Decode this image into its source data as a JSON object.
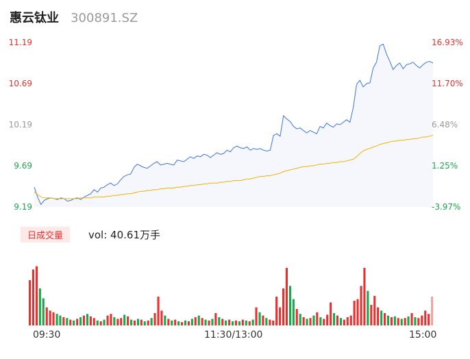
{
  "header": {
    "name": "惠云钛业",
    "code": "300891.SZ"
  },
  "volume": {
    "label": "日成交量",
    "text": "vol: 40.61万手"
  },
  "time_labels": [
    "09:30",
    "11:30/13:00",
    "15:00"
  ],
  "colors": {
    "price": "#3b73e3",
    "avg": "#f5b000",
    "up": "#e8312e",
    "down": "#1aa64b",
    "flat": "#999999",
    "fill": "#f5f7fc",
    "latest_bar": "#f2a0a0"
  },
  "chart_data": {
    "type": "line",
    "ylim": [
      9.19,
      11.19
    ],
    "y_ticks": [
      {
        "price": "11.19",
        "pct": "16.93%",
        "dir": "up"
      },
      {
        "price": "10.69",
        "pct": "11.70%",
        "dir": "up"
      },
      {
        "price": "10.19",
        "pct": "6.48%",
        "dir": "flat"
      },
      {
        "price": "9.69",
        "pct": "1.25%",
        "dir": "down"
      },
      {
        "price": "9.19",
        "pct": "-3.97%",
        "dir": "down"
      }
    ],
    "series": [
      {
        "key": "price",
        "values": [
          9.43,
          9.31,
          9.22,
          9.27,
          9.29,
          9.3,
          9.29,
          9.28,
          9.3,
          9.29,
          9.26,
          9.27,
          9.29,
          9.3,
          9.28,
          9.31,
          9.33,
          9.35,
          9.4,
          9.37,
          9.42,
          9.43,
          9.46,
          9.48,
          9.45,
          9.47,
          9.52,
          9.56,
          9.58,
          9.59,
          9.67,
          9.71,
          9.69,
          9.67,
          9.66,
          9.69,
          9.72,
          9.74,
          9.7,
          9.71,
          9.72,
          9.71,
          9.7,
          9.76,
          9.75,
          9.74,
          9.77,
          9.8,
          9.78,
          9.81,
          9.8,
          9.83,
          9.82,
          9.79,
          9.82,
          9.85,
          9.83,
          9.84,
          9.88,
          9.86,
          9.91,
          9.93,
          9.91,
          9.9,
          9.92,
          9.88,
          9.9,
          9.89,
          9.9,
          9.88,
          9.87,
          9.88,
          10.06,
          10.08,
          10.05,
          10.3,
          10.26,
          10.23,
          10.17,
          10.14,
          10.15,
          10.12,
          10.09,
          10.12,
          10.1,
          10.08,
          10.17,
          10.15,
          10.21,
          10.18,
          10.16,
          10.2,
          10.19,
          10.22,
          10.25,
          10.22,
          10.4,
          10.68,
          10.73,
          10.65,
          10.69,
          10.7,
          10.88,
          10.95,
          11.15,
          11.17,
          11.05,
          10.96,
          10.86,
          10.91,
          10.94,
          10.87,
          10.92,
          10.93,
          10.95,
          10.91,
          10.88,
          10.92,
          10.95,
          10.96,
          10.94
        ],
        "avg": [
          9.37,
          9.34,
          9.31,
          9.3,
          9.3,
          9.3,
          9.29,
          9.29,
          9.29,
          9.29,
          9.29,
          9.29,
          9.29,
          9.29,
          9.3,
          9.3,
          9.3,
          9.3,
          9.31,
          9.31,
          9.31,
          9.31,
          9.32,
          9.32,
          9.33,
          9.33,
          9.34,
          9.34,
          9.35,
          9.35,
          9.36,
          9.37,
          9.38,
          9.38,
          9.39,
          9.39,
          9.4,
          9.4,
          9.41,
          9.41,
          9.42,
          9.42,
          9.42,
          9.43,
          9.43,
          9.44,
          9.44,
          9.45,
          9.45,
          9.46,
          9.46,
          9.47,
          9.47,
          9.48,
          9.48,
          9.48,
          9.49,
          9.49,
          9.5,
          9.5,
          9.51,
          9.51,
          9.51,
          9.52,
          9.53,
          9.53,
          9.54,
          9.55,
          9.56,
          9.56,
          9.57,
          9.57,
          9.58,
          9.59,
          9.6,
          9.62,
          9.63,
          9.64,
          9.65,
          9.66,
          9.67,
          9.68,
          9.68,
          9.69,
          9.69,
          9.7,
          9.71,
          9.71,
          9.72,
          9.72,
          9.73,
          9.73,
          9.74,
          9.74,
          9.75,
          9.76,
          9.77,
          9.8,
          9.84,
          9.87,
          9.89,
          9.9,
          9.92,
          9.93,
          9.95,
          9.96,
          9.97,
          9.98,
          9.99,
          9.99,
          10.0,
          10.0,
          10.01,
          10.01,
          10.02,
          10.02,
          10.03,
          10.04,
          10.04,
          10.05,
          10.06
        ]
      }
    ]
  },
  "volume_data": {
    "values": [
      0.55,
      0.68,
      0.72,
      0.45,
      0.33,
      0.22,
      0.18,
      0.16,
      0.14,
      0.12,
      0.1,
      0.09,
      0.07,
      0.06,
      0.08,
      0.1,
      0.12,
      0.14,
      0.11,
      0.09,
      0.06,
      0.05,
      0.07,
      0.12,
      0.14,
      0.1,
      0.08,
      0.09,
      0.13,
      0.11,
      0.07,
      0.06,
      0.08,
      0.07,
      0.05,
      0.06,
      0.09,
      0.15,
      0.35,
      0.18,
      0.12,
      0.08,
      0.06,
      0.07,
      0.05,
      0.04,
      0.06,
      0.05,
      0.08,
      0.1,
      0.12,
      0.09,
      0.07,
      0.06,
      0.08,
      0.15,
      0.1,
      0.08,
      0.06,
      0.07,
      0.05,
      0.06,
      0.05,
      0.07,
      0.06,
      0.05,
      0.07,
      0.22,
      0.16,
      0.12,
      0.09,
      0.07,
      0.06,
      0.35,
      0.22,
      0.45,
      0.7,
      0.48,
      0.32,
      0.2,
      0.14,
      0.1,
      0.08,
      0.09,
      0.12,
      0.16,
      0.1,
      0.08,
      0.13,
      0.28,
      0.15,
      0.12,
      0.09,
      0.07,
      0.1,
      0.12,
      0.3,
      0.32,
      0.48,
      0.7,
      0.42,
      0.25,
      0.36,
      0.22,
      0.18,
      0.15,
      0.12,
      0.1,
      0.11,
      0.09,
      0.08,
      0.09,
      0.11,
      0.15,
      0.1,
      0.09,
      0.12,
      0.18,
      0.14,
      0.35
    ],
    "dirs": [
      "up",
      "up",
      "up",
      "down",
      "down",
      "up",
      "up",
      "up",
      "down",
      "down",
      "up",
      "down",
      "up",
      "down",
      "up",
      "down",
      "up",
      "down",
      "up",
      "up",
      "down",
      "up",
      "down",
      "up",
      "up",
      "down",
      "up",
      "up",
      "down",
      "up",
      "down",
      "up",
      "down",
      "up",
      "down",
      "up",
      "down",
      "up",
      "up",
      "up",
      "down",
      "up",
      "down",
      "up",
      "down",
      "up",
      "down",
      "up",
      "down",
      "up",
      "down",
      "up",
      "down",
      "up",
      "down",
      "up",
      "down",
      "up",
      "down",
      "up",
      "down",
      "up",
      "down",
      "up",
      "down",
      "up",
      "down",
      "up",
      "down",
      "up",
      "down",
      "up",
      "up",
      "up",
      "up",
      "up",
      "up",
      "down",
      "down",
      "up",
      "down",
      "up",
      "down",
      "up",
      "down",
      "up",
      "down",
      "up",
      "up",
      "up",
      "down",
      "up",
      "down",
      "up",
      "up",
      "up",
      "up",
      "up",
      "up",
      "up",
      "down",
      "up",
      "up",
      "up",
      "down",
      "up",
      "down",
      "up",
      "down",
      "up",
      "down",
      "up",
      "down",
      "up",
      "down",
      "up",
      "up",
      "up",
      "up",
      "up"
    ]
  }
}
